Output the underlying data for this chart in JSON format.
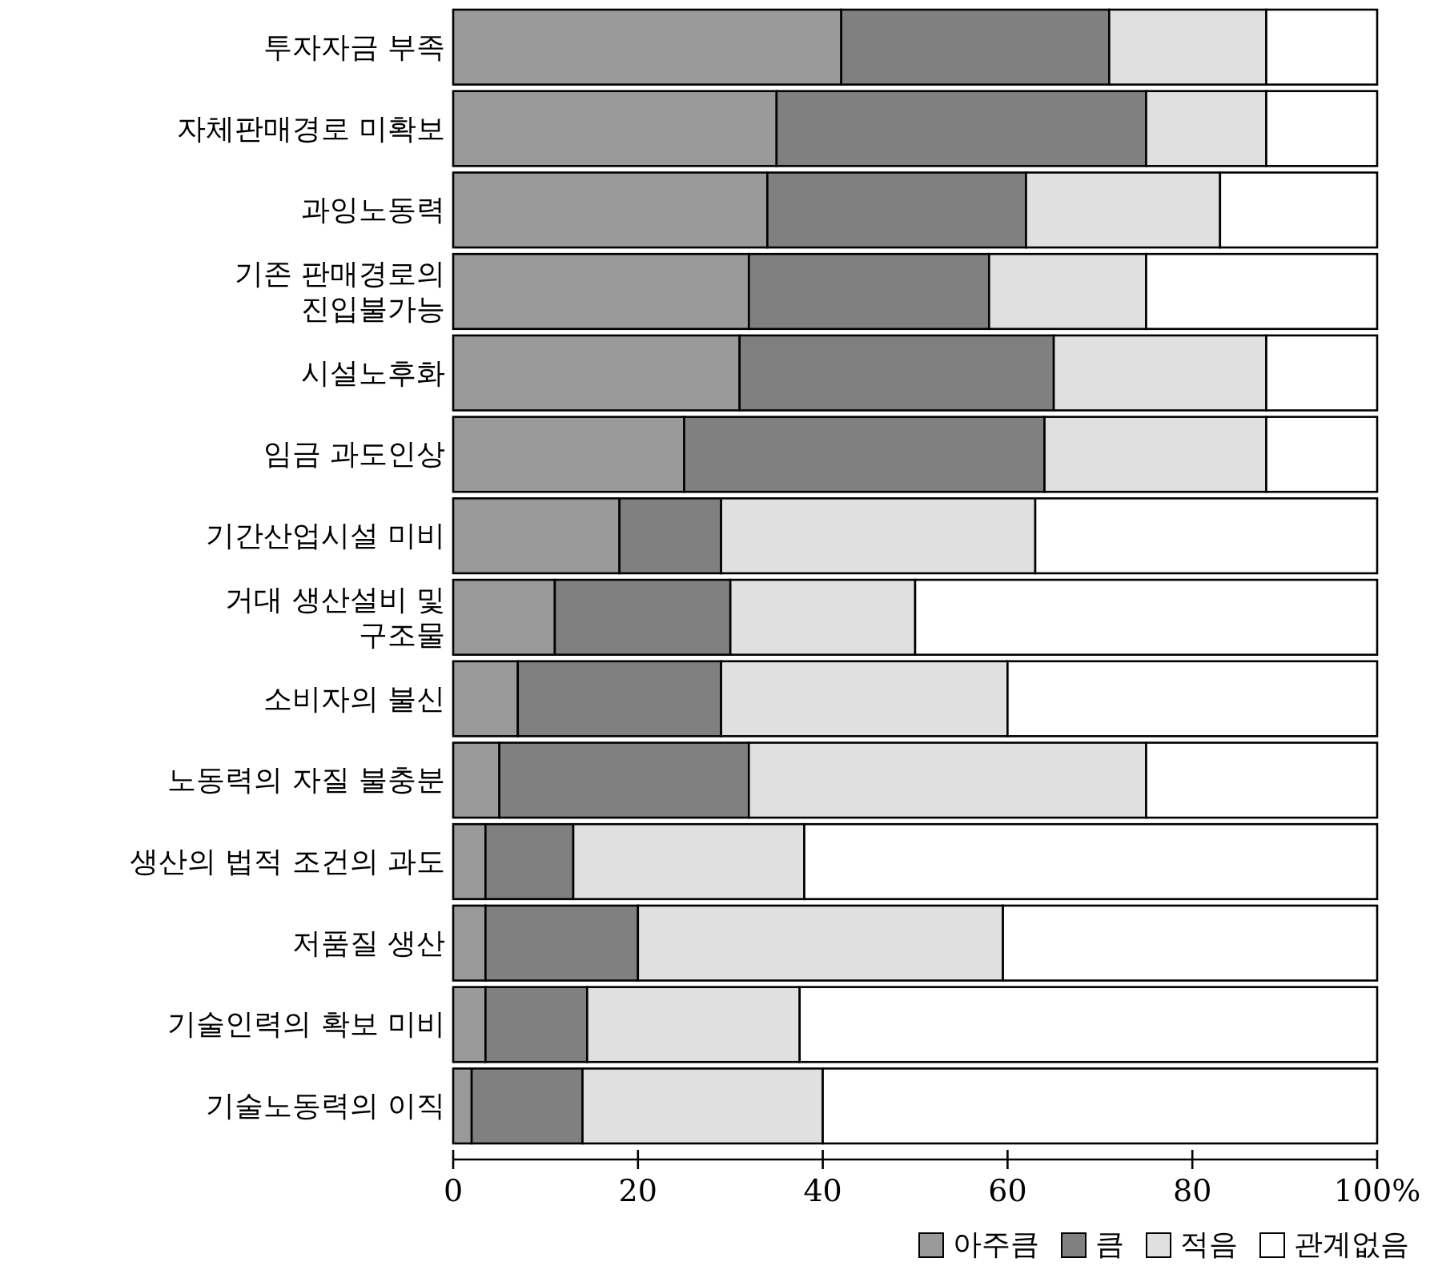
{
  "chart_data": {
    "type": "bar",
    "orientation": "horizontal",
    "stacked": true,
    "categories": [
      "투자자금 부족",
      "자체판매경로 미확보",
      "과잉노동력",
      "기존 판매경로의\n진입불가능",
      "시설노후화",
      "임금 과도인상",
      "기간산업시설 미비",
      "거대 생산설비 및\n구조물",
      "소비자의 불신",
      "노동력의 자질 불충분",
      "생산의 법적 조건의 과도",
      "저품질 생산",
      "기술인력의 확보 미비",
      "기술노동력의 이직"
    ],
    "series": [
      {
        "name": "아주큼",
        "color": "#9a9a9a",
        "values": [
          42,
          35,
          34,
          32,
          31,
          25,
          18,
          11,
          7,
          5,
          3.5,
          3.5,
          3.5,
          2
        ]
      },
      {
        "name": "큼",
        "color": "#808080",
        "values": [
          29,
          40,
          28,
          26,
          34,
          39,
          11,
          19,
          22,
          27,
          9.5,
          16.5,
          11,
          12
        ]
      },
      {
        "name": "적음",
        "color": "#e0e0e0",
        "values": [
          17,
          13,
          21,
          17,
          23,
          24,
          34,
          20,
          31,
          43,
          25,
          39.5,
          23,
          26
        ]
      },
      {
        "name": "관계없음",
        "color": "#ffffff",
        "values": [
          12,
          12,
          17,
          25,
          12,
          12,
          37,
          50,
          40,
          25,
          62,
          40.5,
          62.5,
          60
        ]
      }
    ],
    "xlim": [
      0,
      100
    ],
    "xticks": [
      0,
      20,
      40,
      60,
      {
        "value": 80,
        "label": "80"
      },
      {
        "value": 100,
        "label": "100%"
      }
    ],
    "grid": false,
    "legend": "bottom right"
  }
}
